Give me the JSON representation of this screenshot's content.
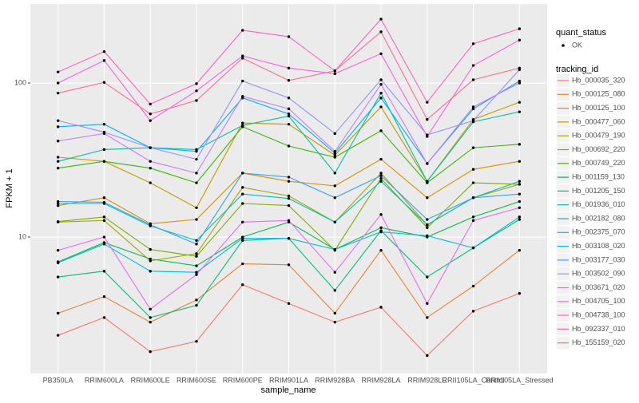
{
  "chart_data": {
    "type": "line",
    "log_y": true,
    "grid": true,
    "x_label": "sample_name",
    "y_label": "FPKM + 1",
    "categories": [
      "PB350LA",
      "RRIM600LA",
      "RRIM600LE",
      "RRIM600SE",
      "RRIM600PE",
      "RRIM901LA",
      "RRIM928BA",
      "RRIM928LA",
      "RRIM928LE",
      "RRII105LA_Control",
      "RRII105LA_Stressed"
    ],
    "ylim": [
      1.3,
      326
    ],
    "yticks": [
      10,
      100
    ],
    "shape_legend": {
      "title": "quant_status",
      "labels": [
        "OK"
      ]
    },
    "legend_title": "tracking_id",
    "series": [
      {
        "name": "Hb_000035_320",
        "color": "#F8766D",
        "values": [
          2.3,
          3.0,
          1.8,
          2.1,
          4.9,
          3.7,
          2.8,
          3.5,
          1.7,
          3.3,
          4.3
        ]
      },
      {
        "name": "Hb_000125_080",
        "color": "#EA8331",
        "values": [
          3.2,
          4.1,
          2.8,
          3.9,
          6.7,
          6.6,
          3.2,
          8.2,
          3.0,
          4.8,
          8.2
        ]
      },
      {
        "name": "Hb_000125_100",
        "color": "#D89000",
        "values": [
          16,
          18,
          12.2,
          13,
          26,
          23,
          21.5,
          32,
          18,
          27.5,
          31
        ]
      },
      {
        "name": "Hb_000477_060",
        "color": "#C09B00",
        "values": [
          33,
          31,
          22.5,
          15.5,
          55,
          54,
          34,
          70,
          23,
          58,
          75
        ]
      },
      {
        "name": "Hb_000479_190",
        "color": "#A3A500",
        "values": [
          12.5,
          12.8,
          7,
          7.8,
          21,
          18.5,
          12.5,
          26,
          12,
          18,
          22
        ]
      },
      {
        "name": "Hb_000692_220",
        "color": "#7CAE00",
        "values": [
          12.6,
          13.5,
          8.3,
          7.5,
          16.5,
          16,
          8.2,
          24,
          11.5,
          22.5,
          22
        ]
      },
      {
        "name": "Hb_000749_220",
        "color": "#39B600",
        "values": [
          28,
          31,
          28,
          22.5,
          52,
          39,
          33,
          49,
          22.5,
          38,
          40
        ]
      },
      {
        "name": "Hb_001159_130",
        "color": "#00BB4E",
        "values": [
          6.9,
          9.2,
          7.2,
          6.5,
          10,
          12.5,
          8.3,
          11.5,
          10,
          13.5,
          17
        ]
      },
      {
        "name": "Hb_001205_150",
        "color": "#00BF7D",
        "values": [
          5.5,
          6,
          3.0,
          3.6,
          9.5,
          9.8,
          4.5,
          11,
          5.5,
          8.5,
          13
        ]
      },
      {
        "name": "Hb_001936_010",
        "color": "#00C1A3",
        "values": [
          31,
          37,
          38,
          37,
          53,
          61,
          26,
          86,
          23,
          56,
          65
        ]
      },
      {
        "name": "Hb_002182_080",
        "color": "#00BFC4",
        "values": [
          16.5,
          16.5,
          11.8,
          9.5,
          19,
          17.8,
          12.5,
          23,
          12,
          18,
          23
        ]
      },
      {
        "name": "Hb_002375_070",
        "color": "#00BAE0",
        "values": [
          6.8,
          9,
          6.0,
          5.9,
          9.8,
          9.8,
          8.3,
          10.8,
          10.2,
          8.5,
          13.5
        ]
      },
      {
        "name": "Hb_003108_020",
        "color": "#00B0F6",
        "values": [
          52,
          54,
          38,
          36,
          80,
          63,
          35,
          80,
          30,
          68,
          103
        ]
      },
      {
        "name": "Hb_003177_030",
        "color": "#35A2FF",
        "values": [
          17,
          16.8,
          12,
          9,
          26,
          24.5,
          18,
          25,
          13,
          18,
          19
        ]
      },
      {
        "name": "Hb_003502_090",
        "color": "#9590FF",
        "values": [
          57,
          48,
          38,
          32,
          103,
          80,
          47,
          105,
          46,
          57,
          122
        ]
      },
      {
        "name": "Hb_003671_020",
        "color": "#C77CFF",
        "values": [
          42,
          47,
          31,
          26,
          82,
          68,
          36,
          98,
          30,
          70,
          100
        ]
      },
      {
        "name": "Hb_004705_100",
        "color": "#E76BF3",
        "values": [
          8.2,
          10,
          3.4,
          5.7,
          12.5,
          12.8,
          5.9,
          14,
          3.7,
          12.8,
          15.5
        ]
      },
      {
        "name": "Hb_004738_100",
        "color": "#FA62DB",
        "values": [
          100,
          140,
          57,
          89,
          150,
          125,
          115,
          155,
          45,
          130,
          190
        ]
      },
      {
        "name": "Hb_092337_010",
        "color": "#FF62BC",
        "values": [
          118,
          160,
          73,
          99,
          220,
          200,
          120,
          260,
          75,
          180,
          225
        ]
      },
      {
        "name": "Hb_155159_020",
        "color": "#FF6C91",
        "values": [
          86,
          101,
          63,
          77,
          145,
          104,
          120,
          215,
          58,
          105,
          125
        ]
      }
    ]
  }
}
